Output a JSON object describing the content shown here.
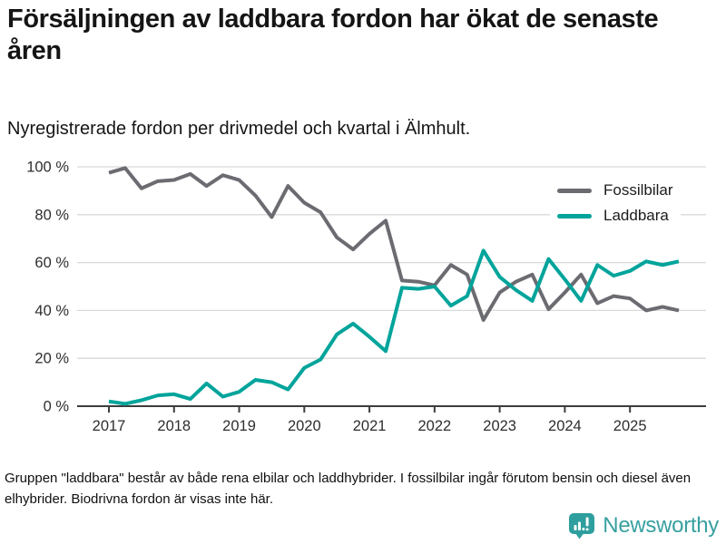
{
  "header": {
    "title": "Försäljningen av laddbara fordon har ökat de senaste åren",
    "subtitle": "Nyregistrerade fordon per drivmedel och kvartal i Älmhult."
  },
  "legend": {
    "position": "top-right"
  },
  "chart_data": {
    "type": "line",
    "title": "Försäljningen av laddbara fordon har ökat de senaste åren",
    "subtitle": "Nyregistrerade fordon per drivmedel och kvartal i Älmhult.",
    "x_unit": "quarter",
    "x": [
      "2017 Q1",
      "2017 Q2",
      "2017 Q3",
      "2017 Q4",
      "2018 Q1",
      "2018 Q2",
      "2018 Q3",
      "2018 Q4",
      "2019 Q1",
      "2019 Q2",
      "2019 Q3",
      "2019 Q4",
      "2020 Q1",
      "2020 Q2",
      "2020 Q3",
      "2020 Q4",
      "2021 Q1",
      "2021 Q2",
      "2021 Q3",
      "2021 Q4",
      "2022 Q1",
      "2022 Q2",
      "2022 Q3",
      "2022 Q4",
      "2023 Q1",
      "2023 Q2",
      "2023 Q3",
      "2023 Q4",
      "2024 Q1",
      "2024 Q2",
      "2024 Q3",
      "2024 Q4",
      "2025 Q1",
      "2025 Q2",
      "2025 Q3",
      "2025 Q4"
    ],
    "series": [
      {
        "name": "Fossilbilar",
        "color": "#6b6b72",
        "values": [
          97.5,
          99.5,
          91,
          94,
          94.5,
          97,
          92,
          96.5,
          94.5,
          88,
          79,
          92,
          85,
          81,
          70.5,
          65.5,
          72,
          77.5,
          52.5,
          52,
          50.5,
          59,
          55,
          36,
          47.5,
          52,
          55,
          40.5,
          47.5,
          55,
          43,
          46,
          45,
          40,
          41.5,
          40
        ]
      },
      {
        "name": "Laddbara",
        "color": "#00a49b",
        "values": [
          2,
          1,
          2.5,
          4.5,
          5,
          3,
          9.5,
          4,
          6,
          11,
          10,
          7,
          16,
          19.5,
          30,
          34.5,
          29,
          23,
          49.5,
          49,
          50,
          42,
          46,
          65,
          54,
          48.5,
          44,
          61.5,
          53,
          44,
          59,
          54.5,
          56.5,
          60.5,
          59,
          60.5
        ]
      }
    ],
    "ylim": [
      0,
      100
    ],
    "yticks": [
      0,
      20,
      40,
      60,
      80,
      100
    ],
    "ytick_labels": [
      "0 %",
      "20 %",
      "40 %",
      "60 %",
      "80 %",
      "100 %"
    ],
    "xtick_labels": [
      "2017",
      "2018",
      "2019",
      "2020",
      "2021",
      "2022",
      "2023",
      "2024",
      "2025"
    ],
    "grid": true,
    "legend_position": "top-right"
  },
  "footer": {
    "note": "Gruppen \"laddbara\" består av både rena elbilar och laddhybrider. I fossilbilar ingår förutom bensin och diesel även elhybrider. Biodrivna fordon är visas inte här.",
    "brand": "Newsworthy"
  },
  "icons": {
    "logo": "newsworthy-speech-bubble-bar-chart-icon"
  },
  "colors": {
    "accent_teal": "#00a49b",
    "line_gray": "#6b6b72",
    "brand_teal": "#38a0a0",
    "grid": "#d9d9d9",
    "axis": "#3c3c3c",
    "text": "#151515"
  }
}
